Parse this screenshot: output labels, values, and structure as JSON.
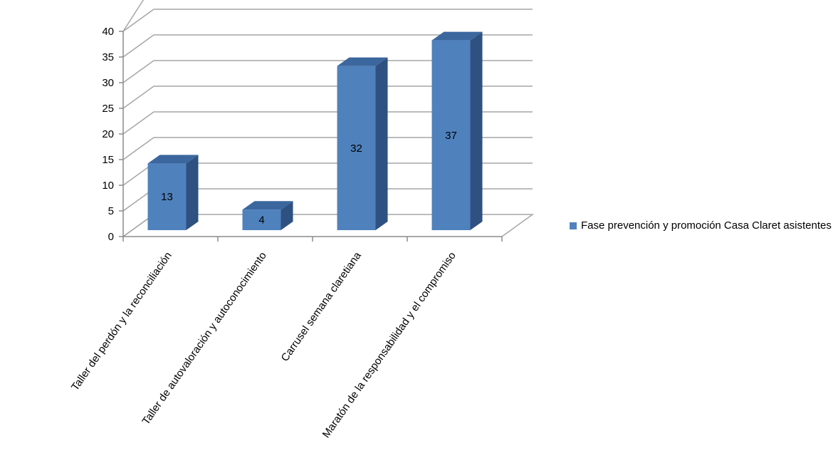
{
  "chart_data": {
    "type": "bar",
    "categories": [
      "Taller del perdón y la reconciliación",
      "Taller de autovaloración y autoconocimiento",
      "Carrusel semana claretiana",
      "Maratón de la responsabilidad y el compromiso"
    ],
    "series": [
      {
        "name": "Fase prevención y promoción Casa Claret asistentes",
        "values": [
          13,
          4,
          32,
          37
        ]
      }
    ],
    "yticks": [
      "0",
      "5",
      "10",
      "15",
      "20",
      "25",
      "30",
      "35",
      "40"
    ],
    "ylim": [
      0,
      40
    ],
    "grid": true,
    "three_d": true,
    "legend_position": "right",
    "colors": {
      "bar_front": "#4f81bd",
      "bar_side": "#2f5181",
      "bar_top": "#3c679e",
      "grid": "#a6a6a6",
      "axis": "#8c8c8c"
    }
  }
}
